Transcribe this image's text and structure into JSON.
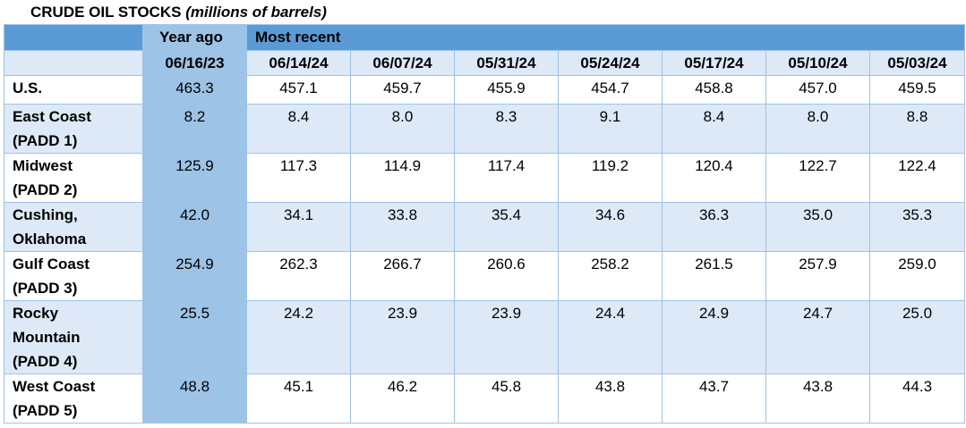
{
  "title": {
    "main": "CRUDE OIL STOCKS",
    "sub": "(millions of barrels)"
  },
  "header": {
    "group_year_ago": "Year ago",
    "group_most_recent": "Most recent",
    "dates": [
      "06/16/23",
      "06/14/24",
      "06/07/24",
      "05/31/24",
      "05/24/24",
      "05/17/24",
      "05/10/24",
      "05/03/24"
    ]
  },
  "chart_data": {
    "type": "table",
    "title": "CRUDE OIL STOCKS (millions of barrels)",
    "columns": [
      "06/16/23",
      "06/14/24",
      "06/07/24",
      "05/31/24",
      "05/24/24",
      "05/17/24",
      "05/10/24",
      "05/03/24"
    ],
    "rows": [
      {
        "label": [
          "U.S."
        ],
        "values": [
          "463.3",
          "457.1",
          "459.7",
          "455.9",
          "454.7",
          "458.8",
          "457.0",
          "459.5"
        ]
      },
      {
        "label": [
          "East Coast",
          "(PADD 1)"
        ],
        "values": [
          "8.2",
          "8.4",
          "8.0",
          "8.3",
          "9.1",
          "8.4",
          "8.0",
          "8.8"
        ]
      },
      {
        "label": [
          "Midwest",
          "(PADD 2)"
        ],
        "values": [
          "125.9",
          "117.3",
          "114.9",
          "117.4",
          "119.2",
          "120.4",
          "122.7",
          "122.4"
        ]
      },
      {
        "label": [
          "Cushing,",
          "Oklahoma"
        ],
        "values": [
          "42.0",
          "34.1",
          "33.8",
          "35.4",
          "34.6",
          "36.3",
          "35.0",
          "35.3"
        ]
      },
      {
        "label": [
          "Gulf Coast",
          "(PADD 3)"
        ],
        "values": [
          "254.9",
          "262.3",
          "266.7",
          "260.6",
          "258.2",
          "261.5",
          "257.9",
          "259.0"
        ]
      },
      {
        "label": [
          "Rocky",
          "Mountain",
          "(PADD 4)"
        ],
        "values": [
          "25.5",
          "24.2",
          "23.9",
          "23.9",
          "24.4",
          "24.9",
          "24.7",
          "25.0"
        ]
      },
      {
        "label": [
          "West Coast",
          "(PADD 5)"
        ],
        "values": [
          "48.8",
          "45.1",
          "46.2",
          "45.8",
          "43.8",
          "43.7",
          "43.8",
          "44.3"
        ]
      }
    ]
  },
  "colors": {
    "header_dark": "#5b9bd5",
    "year_ago_column": "#9dc3e6",
    "band_light": "#dde9f6",
    "band_white": "#ffffff",
    "border": "#9dc3e6"
  }
}
